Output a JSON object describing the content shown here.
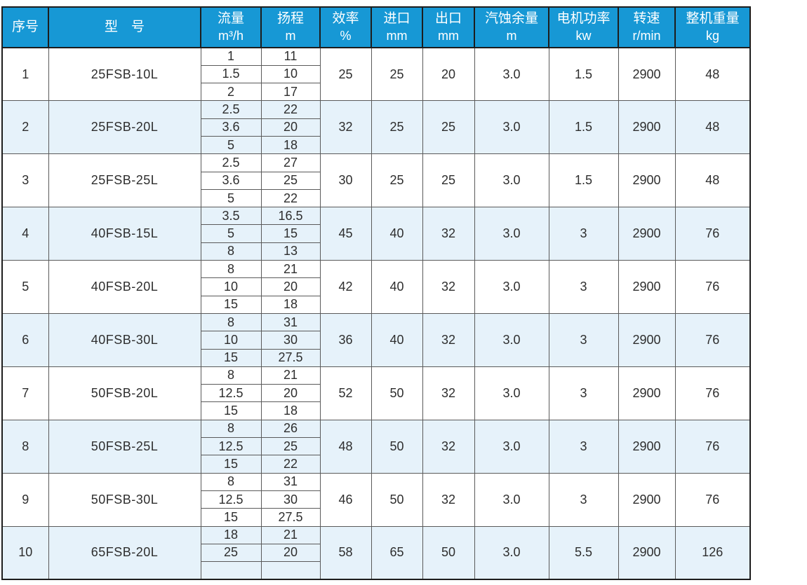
{
  "table": {
    "columns": [
      {
        "key": "no",
        "label": "序号",
        "unit": ""
      },
      {
        "key": "model",
        "label": "型　号",
        "unit": ""
      },
      {
        "key": "flow",
        "label": "流量",
        "unit": "m³/h"
      },
      {
        "key": "head",
        "label": "扬程",
        "unit": "m"
      },
      {
        "key": "eff",
        "label": "效率",
        "unit": "%"
      },
      {
        "key": "inlet",
        "label": "进口",
        "unit": "mm"
      },
      {
        "key": "outlet",
        "label": "出口",
        "unit": "mm"
      },
      {
        "key": "npsh",
        "label": "汽蚀余量",
        "unit": "m"
      },
      {
        "key": "power",
        "label": "电机功率",
        "unit": "kw"
      },
      {
        "key": "speed",
        "label": "转速",
        "unit": "r/min"
      },
      {
        "key": "weight",
        "label": "整机重量",
        "unit": "kg"
      }
    ],
    "rows": [
      {
        "no": "1",
        "model": "25FSB-10L",
        "points": [
          [
            "1",
            "11"
          ],
          [
            "1.5",
            "10"
          ],
          [
            "2",
            "17"
          ]
        ],
        "eff": "25",
        "inlet": "25",
        "outlet": "20",
        "npsh": "3.0",
        "power": "1.5",
        "speed": "2900",
        "weight": "48"
      },
      {
        "no": "2",
        "model": "25FSB-20L",
        "points": [
          [
            "2.5",
            "22"
          ],
          [
            "3.6",
            "20"
          ],
          [
            "5",
            "18"
          ]
        ],
        "eff": "32",
        "inlet": "25",
        "outlet": "25",
        "npsh": "3.0",
        "power": "1.5",
        "speed": "2900",
        "weight": "48"
      },
      {
        "no": "3",
        "model": "25FSB-25L",
        "points": [
          [
            "2.5",
            "27"
          ],
          [
            "3.6",
            "25"
          ],
          [
            "5",
            "22"
          ]
        ],
        "eff": "30",
        "inlet": "25",
        "outlet": "25",
        "npsh": "3.0",
        "power": "1.5",
        "speed": "2900",
        "weight": "48"
      },
      {
        "no": "4",
        "model": "40FSB-15L",
        "points": [
          [
            "3.5",
            "16.5"
          ],
          [
            "5",
            "15"
          ],
          [
            "8",
            "13"
          ]
        ],
        "eff": "45",
        "inlet": "40",
        "outlet": "32",
        "npsh": "3.0",
        "power": "3",
        "speed": "2900",
        "weight": "76"
      },
      {
        "no": "5",
        "model": "40FSB-20L",
        "points": [
          [
            "8",
            "21"
          ],
          [
            "10",
            "20"
          ],
          [
            "15",
            "18"
          ]
        ],
        "eff": "42",
        "inlet": "40",
        "outlet": "32",
        "npsh": "3.0",
        "power": "3",
        "speed": "2900",
        "weight": "76"
      },
      {
        "no": "6",
        "model": "40FSB-30L",
        "points": [
          [
            "8",
            "31"
          ],
          [
            "10",
            "30"
          ],
          [
            "15",
            "27.5"
          ]
        ],
        "eff": "36",
        "inlet": "40",
        "outlet": "32",
        "npsh": "3.0",
        "power": "3",
        "speed": "2900",
        "weight": "76"
      },
      {
        "no": "7",
        "model": "50FSB-20L",
        "points": [
          [
            "8",
            "21"
          ],
          [
            "12.5",
            "20"
          ],
          [
            "15",
            "18"
          ]
        ],
        "eff": "52",
        "inlet": "50",
        "outlet": "32",
        "npsh": "3.0",
        "power": "3",
        "speed": "2900",
        "weight": "76"
      },
      {
        "no": "8",
        "model": "50FSB-25L",
        "points": [
          [
            "8",
            "26"
          ],
          [
            "12.5",
            "25"
          ],
          [
            "15",
            "22"
          ]
        ],
        "eff": "48",
        "inlet": "50",
        "outlet": "32",
        "npsh": "3.0",
        "power": "3",
        "speed": "2900",
        "weight": "76"
      },
      {
        "no": "9",
        "model": "50FSB-30L",
        "points": [
          [
            "8",
            "31"
          ],
          [
            "12.5",
            "30"
          ],
          [
            "15",
            "27.5"
          ]
        ],
        "eff": "46",
        "inlet": "50",
        "outlet": "32",
        "npsh": "3.0",
        "power": "3",
        "speed": "2900",
        "weight": "76"
      },
      {
        "no": "10",
        "model": "65FSB-20L",
        "points": [
          [
            "18",
            "21"
          ],
          [
            "25",
            "20"
          ],
          [
            "",
            ""
          ]
        ],
        "eff": "58",
        "inlet": "65",
        "outlet": "50",
        "npsh": "3.0",
        "power": "5.5",
        "speed": "2900",
        "weight": "126"
      }
    ]
  },
  "colors": {
    "header_bg": "#1798d5",
    "header_text": "#ffffff",
    "stripe": "#e6f2fa",
    "border_dark": "#1d1d1d",
    "border_light": "#5a5a5a",
    "text": "#2e2e2e"
  }
}
